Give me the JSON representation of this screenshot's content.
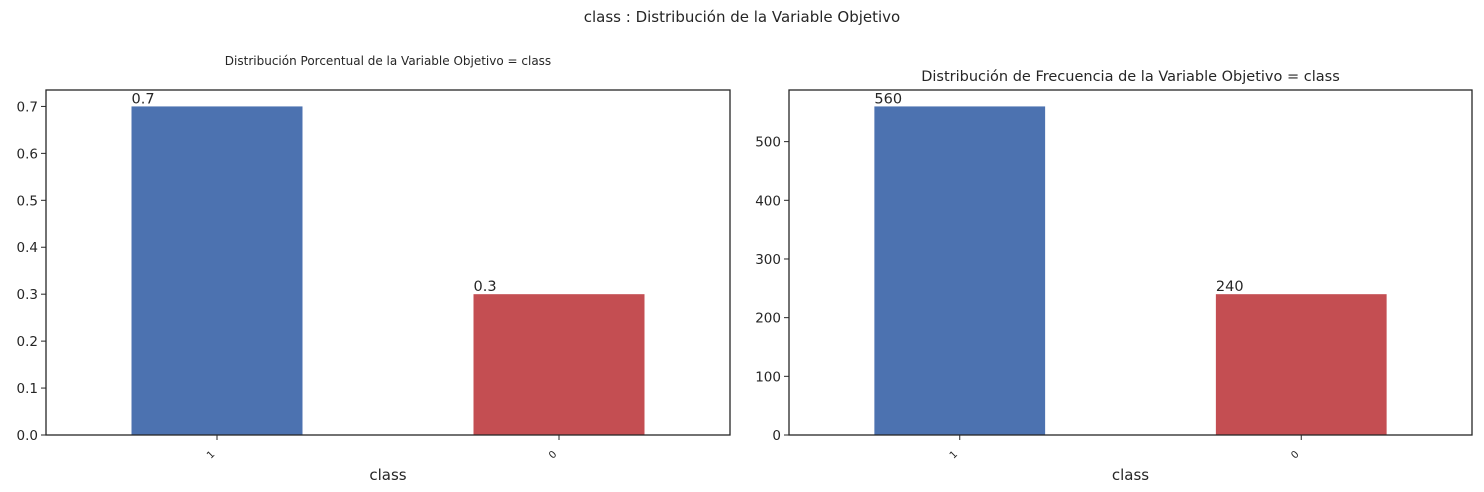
{
  "figure": {
    "suptitle": "class : Distribución de la Variable Objetivo"
  },
  "chart_data": [
    {
      "type": "bar",
      "title": "Distribución Porcentual de la Variable Objetivo = class",
      "xlabel": "class",
      "ylabel": "",
      "categories": [
        "1",
        "0"
      ],
      "values": [
        0.7,
        0.3
      ],
      "value_labels": [
        "0.7",
        "0.3"
      ],
      "ylim": [
        0,
        0.735
      ],
      "yticks": [
        0.0,
        0.1,
        0.2,
        0.3,
        0.4,
        0.5,
        0.6,
        0.7
      ],
      "ytick_labels": [
        "0.0",
        "0.1",
        "0.2",
        "0.3",
        "0.4",
        "0.5",
        "0.6",
        "0.7"
      ],
      "colors": [
        "#4c72b0",
        "#c44e52"
      ],
      "grid": false,
      "legend": "none"
    },
    {
      "type": "bar",
      "title": "Distribución de Frecuencia de la Variable Objetivo = class",
      "xlabel": "class",
      "ylabel": "",
      "categories": [
        "1",
        "0"
      ],
      "values": [
        560,
        240
      ],
      "value_labels": [
        "560",
        "240"
      ],
      "ylim": [
        0,
        588
      ],
      "yticks": [
        0,
        100,
        200,
        300,
        400,
        500
      ],
      "ytick_labels": [
        "0",
        "100",
        "200",
        "300",
        "400",
        "500"
      ],
      "colors": [
        "#4c72b0",
        "#c44e52"
      ],
      "grid": false,
      "legend": "none"
    }
  ]
}
